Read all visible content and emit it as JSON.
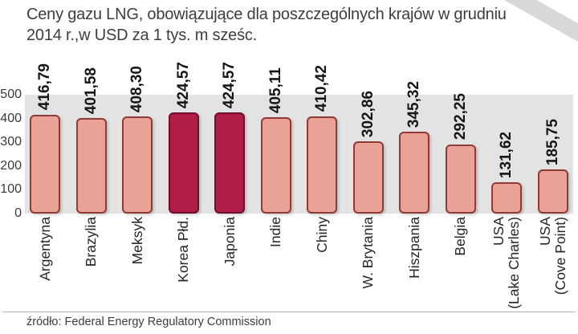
{
  "title": {
    "lines": [
      "Ceny gazu LNG, obowiązujące dla poszczególnych krajów w grudniu",
      "2014 r.,w USD za 1 tys. m sześc."
    ]
  },
  "source": "źródło: Federal Energy Regulatory Commission",
  "chart_data": {
    "type": "bar",
    "title": "Ceny gazu LNG, obowiązujące dla poszczególnych krajów w grudniu 2014 r.,w USD za 1 tys. m sześc.",
    "unit": "USD za 1 tys. m sześc.",
    "categories": [
      "Argentyna",
      "Brazylia",
      "Meksyk",
      "Korea Płd.",
      "Japonia",
      "Indie",
      "Chiny",
      "W. Brytania",
      "Hiszpania",
      "Belgia",
      "USA (Lake Charles)",
      "USA (Cove Point)"
    ],
    "category_label_lines": [
      [
        "Argentyna"
      ],
      [
        "Brazylia"
      ],
      [
        "Meksyk"
      ],
      [
        "Korea Płd."
      ],
      [
        "Japonia"
      ],
      [
        "Indie"
      ],
      [
        "Chiny"
      ],
      [
        "W. Brytania"
      ],
      [
        "Hiszpania"
      ],
      [
        "Belgia"
      ],
      [
        "USA",
        "(Lake Charles)"
      ],
      [
        "USA",
        "(Cove Point)"
      ]
    ],
    "values": [
      416.79,
      401.58,
      408.3,
      424.57,
      424.57,
      405.11,
      410.42,
      302.86,
      345.32,
      292.25,
      131.62,
      185.75
    ],
    "value_labels": [
      "416,79",
      "401,58",
      "408,30",
      "424,57",
      "424,57",
      "405,11",
      "410,42",
      "302,86",
      "345,32",
      "292,25",
      "131,62",
      "185,75"
    ],
    "highlight_indices": [
      3,
      4
    ],
    "highlighted_categories": [
      "Korea Płd.",
      "Japonia"
    ],
    "y_ticks": [
      "500",
      "400",
      "300",
      "200",
      "100",
      "0"
    ],
    "ylim": [
      0,
      500
    ],
    "grid": false,
    "legend": null,
    "colors": {
      "bar_fill": "#e9a295",
      "bar_border": "#8f3a34",
      "highlight_fill": "#b01e48",
      "highlight_border": "#6f0e2c",
      "plot_background": "#e3e3e3"
    }
  }
}
